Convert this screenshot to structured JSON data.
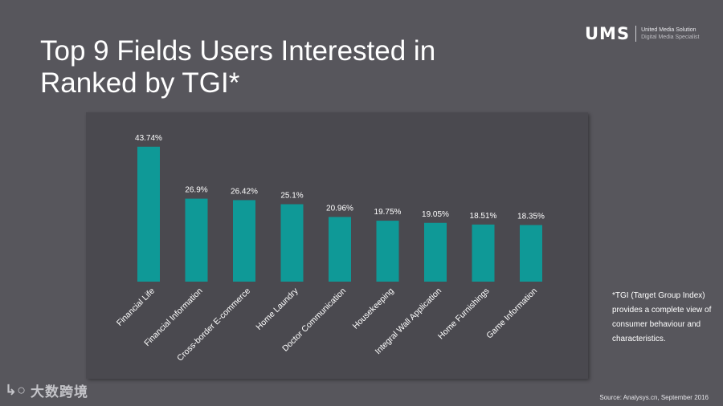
{
  "header": {
    "title_line1": "Top 9 Fields Users Interested in",
    "title_line2": "Ranked by TGI*"
  },
  "logo": {
    "mark": "UMS",
    "line1": "United Media Solution",
    "line2": "Digital Media Specialist"
  },
  "note": "*TGI (Target Group Index) provides a complete view of consumer behaviour and characteristics.",
  "source": "Source: Analysys.cn, September 2016",
  "watermark": {
    "icon": "↳○",
    "text": "大数跨境"
  },
  "colors": {
    "bar": "#0f9997",
    "background": "#57565c",
    "panel": "#4a494f"
  },
  "chart_data": {
    "type": "bar",
    "categories": [
      "Financial Life",
      "Financial Information",
      "Cross-border E-commerce",
      "Home Laundry",
      "Doctor Communication",
      "Housekeeping",
      "Integral Wall Application",
      "Home Furnishings",
      "Game Information"
    ],
    "values": [
      43.74,
      26.9,
      26.42,
      25.1,
      20.96,
      19.75,
      19.05,
      18.51,
      18.35
    ],
    "data_labels": [
      "43.74%",
      "26.9%",
      "26.42%",
      "25.1%",
      "20.96%",
      "19.75%",
      "19.05%",
      "18.51%",
      "18.35%"
    ],
    "title": "",
    "xlabel": "",
    "ylabel": "",
    "ylim": [
      0,
      45
    ],
    "grid": false,
    "legend": "none"
  }
}
